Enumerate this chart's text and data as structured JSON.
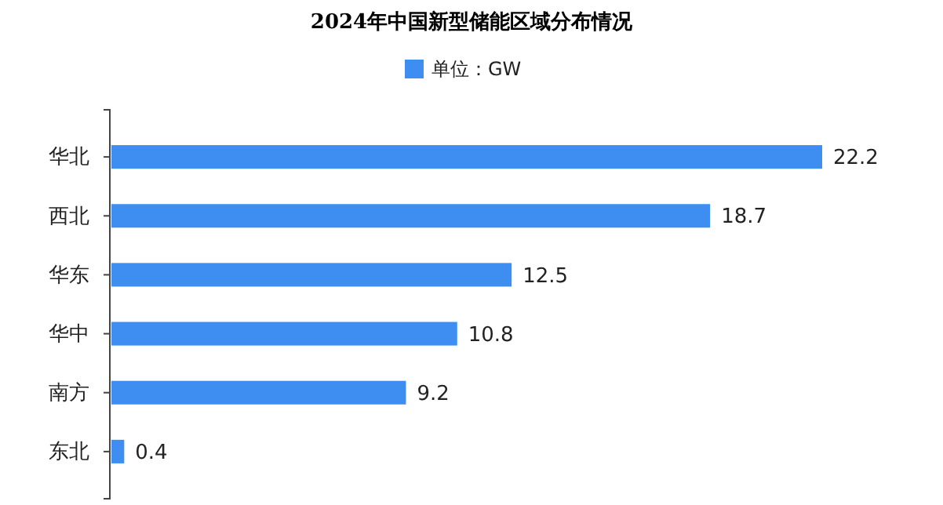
{
  "chart_data": {
    "type": "bar",
    "orientation": "horizontal",
    "title": "2024年中国新型储能区域分布情况",
    "categories": [
      "华北",
      "西北",
      "华东",
      "华中",
      "南方",
      "东北"
    ],
    "series": [
      {
        "name": "单位：GW",
        "color": "#3d8ef0",
        "values": [
          22.2,
          18.7,
          12.5,
          10.8,
          9.2,
          0.4
        ]
      }
    ],
    "data_labels": true,
    "legend": "top"
  }
}
